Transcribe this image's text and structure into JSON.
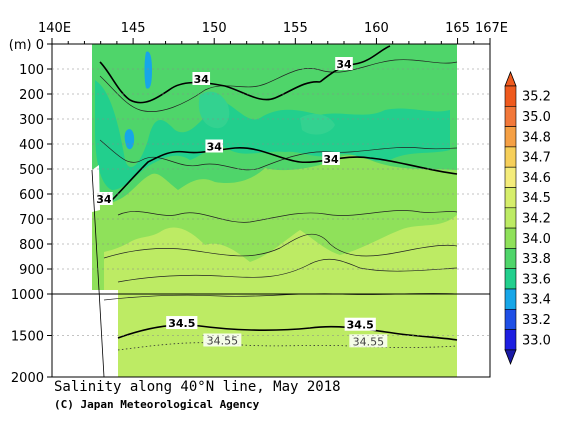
{
  "chart_data": {
    "type": "heatmap",
    "title": "Salinity along 40°N line, May 2018",
    "credit": "(C) Japan Meteorological Agency",
    "x_ticks": [
      "140E",
      "145",
      "150",
      "155",
      "160",
      "165",
      "167E"
    ],
    "x_tick_values": [
      140,
      145,
      150,
      155,
      160,
      165,
      167
    ],
    "xlim": [
      140,
      167
    ],
    "y_ticks": [
      "(m) 0",
      "100",
      "200",
      "300",
      "400",
      "500",
      "600",
      "700",
      "800",
      "900",
      "1000",
      "1500",
      "2000"
    ],
    "y_tick_values": [
      0,
      100,
      200,
      300,
      400,
      500,
      600,
      700,
      800,
      900,
      1000,
      1500,
      2000
    ],
    "ylim": [
      0,
      2000
    ],
    "y_scale_note": "0-1000 m and 1000-2000 m use different scales",
    "colorbar": {
      "labels": [
        "35.2",
        "35.0",
        "34.8",
        "34.7",
        "34.6",
        "34.5",
        "34.2",
        "34.0",
        "33.8",
        "33.6",
        "33.4",
        "33.2",
        "33.0"
      ],
      "colors": [
        "#ef5a1e",
        "#f2783a",
        "#f5a045",
        "#f6cf5a",
        "#f4ec7b",
        "#d6ee6b",
        "#bdeb64",
        "#8fe15a",
        "#4fd56a",
        "#22cf8d",
        "#17a6e8",
        "#1f4fe6",
        "#1e1fe1"
      ]
    },
    "contour_labels": [
      {
        "text": "34",
        "lon": 158.0,
        "depth": 80
      },
      {
        "text": "34",
        "lon": 149.2,
        "depth": 140
      },
      {
        "text": "34",
        "lon": 150.0,
        "depth": 410
      },
      {
        "text": "34",
        "lon": 157.2,
        "depth": 460
      },
      {
        "text": "34",
        "lon": 143.2,
        "depth": 620
      },
      {
        "text": "34.5",
        "lon": 148.0,
        "depth": 1350
      },
      {
        "text": "34.5",
        "lon": 159.0,
        "depth": 1370
      },
      {
        "text": "34.55",
        "lon": 150.5,
        "depth": 1560
      },
      {
        "text": "34.55",
        "lon": 159.5,
        "depth": 1570
      }
    ],
    "fields": [
      {
        "name": "surface 33.8 layer",
        "color": "#4fd56a"
      },
      {
        "name": "34.0 layer",
        "color": "#8fe15a"
      },
      {
        "name": "34.2 layer",
        "color": "#bdeb64"
      },
      {
        "name": "low salinity cores",
        "color": "#22cf8d"
      },
      {
        "name": "minimum 33.4 core",
        "color": "#17a6e8"
      }
    ]
  }
}
